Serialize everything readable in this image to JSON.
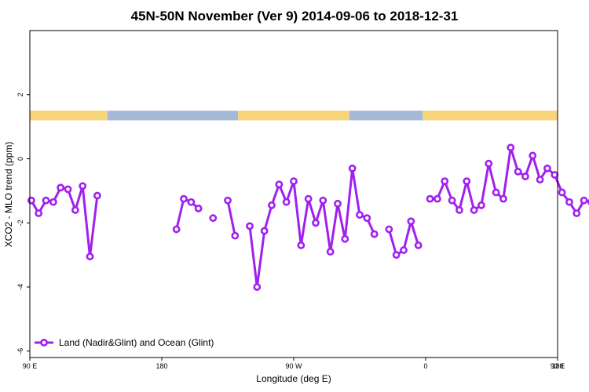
{
  "chart_data": {
    "type": "line",
    "title": "45N-50N November (Ver 9)   2014-09-06 to 2018-12-31",
    "xlabel": "Longitude (deg E)",
    "ylabel": "XCO2 - MLO trend (ppm)",
    "xlim": [
      90,
      450
    ],
    "ylim": [
      -6.2,
      4.0
    ],
    "x_ticks": [
      {
        "value": 90,
        "label": "90 E"
      },
      {
        "value": 180,
        "label": "180"
      },
      {
        "value": 270,
        "label": "90 W"
      },
      {
        "value": 360,
        "label": "0"
      },
      {
        "value": 450,
        "label": "90 E"
      },
      {
        "value": 540,
        "label": "180"
      }
    ],
    "y_ticks": [
      {
        "value": 2,
        "label": "2"
      },
      {
        "value": 0,
        "label": "0"
      },
      {
        "value": -2,
        "label": "-2"
      },
      {
        "value": -4,
        "label": "-4"
      },
      {
        "value": -6,
        "label": "-6"
      }
    ],
    "land_ocean_band": {
      "y_range": [
        1.2,
        1.5
      ],
      "land_color": "#f5d47a",
      "ocean_color": "#a4b8d8",
      "segments": [
        {
          "type": "land",
          "from": 90,
          "to": 143
        },
        {
          "type": "ocean",
          "from": 143,
          "to": 232
        },
        {
          "type": "land",
          "from": 232,
          "to": 308
        },
        {
          "type": "ocean",
          "from": 308,
          "to": 358
        },
        {
          "type": "land",
          "from": 358,
          "to": 503
        },
        {
          "type": "ocean",
          "from": 503,
          "to": 540
        }
      ]
    },
    "series": [
      {
        "name": "Land (Nadir&Glint) and Ocean (Glint)",
        "color": "#a020f0",
        "segments": [
          [
            {
              "x": 91,
              "y": -1.3
            },
            {
              "x": 96,
              "y": -1.7
            },
            {
              "x": 101,
              "y": -1.3
            },
            {
              "x": 106,
              "y": -1.35
            },
            {
              "x": 111,
              "y": -0.9
            },
            {
              "x": 116,
              "y": -0.95
            },
            {
              "x": 121,
              "y": -1.6
            },
            {
              "x": 126,
              "y": -0.85
            },
            {
              "x": 131,
              "y": -3.05
            },
            {
              "x": 136,
              "y": -1.15
            }
          ],
          [
            {
              "x": 190,
              "y": -2.2
            },
            {
              "x": 195,
              "y": -1.25
            },
            {
              "x": 200,
              "y": -1.35
            },
            {
              "x": 205,
              "y": -1.55
            }
          ],
          [
            {
              "x": 215,
              "y": -1.85
            }
          ],
          [
            {
              "x": 225,
              "y": -1.3
            },
            {
              "x": 230,
              "y": -2.4
            }
          ],
          [
            {
              "x": 240,
              "y": -2.1
            },
            {
              "x": 245,
              "y": -4.0
            },
            {
              "x": 250,
              "y": -2.25
            },
            {
              "x": 255,
              "y": -1.45
            },
            {
              "x": 260,
              "y": -0.8
            },
            {
              "x": 265,
              "y": -1.35
            },
            {
              "x": 270,
              "y": -0.7
            },
            {
              "x": 275,
              "y": -2.7
            },
            {
              "x": 280,
              "y": -1.25
            },
            {
              "x": 285,
              "y": -2.0
            },
            {
              "x": 290,
              "y": -1.3
            },
            {
              "x": 295,
              "y": -2.9
            },
            {
              "x": 300,
              "y": -1.4
            },
            {
              "x": 305,
              "y": -2.5
            },
            {
              "x": 310,
              "y": -0.3
            },
            {
              "x": 315,
              "y": -1.75
            },
            {
              "x": 320,
              "y": -1.85
            },
            {
              "x": 325,
              "y": -2.35
            }
          ],
          [
            {
              "x": 335,
              "y": -2.2
            },
            {
              "x": 340,
              "y": -3.0
            },
            {
              "x": 345,
              "y": -2.85
            },
            {
              "x": 350,
              "y": -1.95
            },
            {
              "x": 355,
              "y": -2.7
            }
          ],
          [
            {
              "x": 363,
              "y": -1.25
            },
            {
              "x": 368,
              "y": -1.25
            },
            {
              "x": 373,
              "y": -0.7
            },
            {
              "x": 378,
              "y": -1.3
            },
            {
              "x": 383,
              "y": -1.6
            },
            {
              "x": 388,
              "y": -0.7
            },
            {
              "x": 393,
              "y": -1.6
            },
            {
              "x": 398,
              "y": -1.45
            },
            {
              "x": 403,
              "y": -0.15
            },
            {
              "x": 408,
              "y": -1.05
            },
            {
              "x": 413,
              "y": -1.25
            },
            {
              "x": 418,
              "y": 0.35
            },
            {
              "x": 423,
              "y": -0.4
            },
            {
              "x": 428,
              "y": -0.55
            },
            {
              "x": 433,
              "y": 0.1
            },
            {
              "x": 438,
              "y": -0.65
            },
            {
              "x": 443,
              "y": -0.3
            },
            {
              "x": 448,
              "y": -0.5
            },
            {
              "x": 453,
              "y": -1.05
            },
            {
              "x": 458,
              "y": -1.35
            },
            {
              "x": 463,
              "y": -1.7
            },
            {
              "x": 468,
              "y": -1.3
            },
            {
              "x": 473,
              "y": -1.35
            },
            {
              "x": 478,
              "y": -0.9
            },
            {
              "x": 483,
              "y": -0.95
            },
            {
              "x": 488,
              "y": -1.6
            },
            {
              "x": 493,
              "y": -0.85
            },
            {
              "x": 498,
              "y": -3.05
            },
            {
              "x": 503,
              "y": -1.15
            }
          ]
        ]
      }
    ],
    "legend": {
      "position": "bottom-left"
    },
    "grid": false
  }
}
